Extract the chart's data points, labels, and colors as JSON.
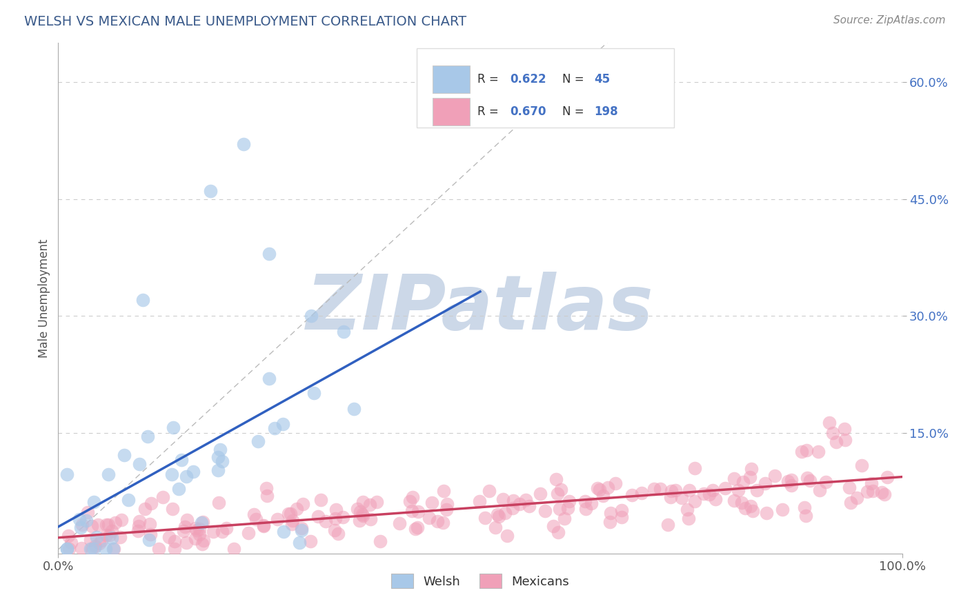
{
  "title": "WELSH VS MEXICAN MALE UNEMPLOYMENT CORRELATION CHART",
  "source": "Source: ZipAtlas.com",
  "ylabel": "Male Unemployment",
  "xlim": [
    0.0,
    1.0
  ],
  "ylim": [
    -0.005,
    0.65
  ],
  "welsh_R": 0.622,
  "welsh_N": 45,
  "mexican_R": 0.67,
  "mexican_N": 198,
  "welsh_color": "#a8c8e8",
  "welsh_line_color": "#3060c0",
  "mexican_color": "#f0a0b8",
  "mexican_line_color": "#c84060",
  "title_color": "#3a5a8a",
  "source_color": "#888888",
  "watermark_color": "#ccd8e8",
  "background_color": "#ffffff",
  "legend_text_color": "#333333",
  "legend_value_color": "#4472c4",
  "grid_color": "#cccccc",
  "ref_line_color": "#bbbbbb",
  "ytick_color": "#4472c4",
  "xtick_color": "#555555",
  "ylabel_color": "#555555"
}
